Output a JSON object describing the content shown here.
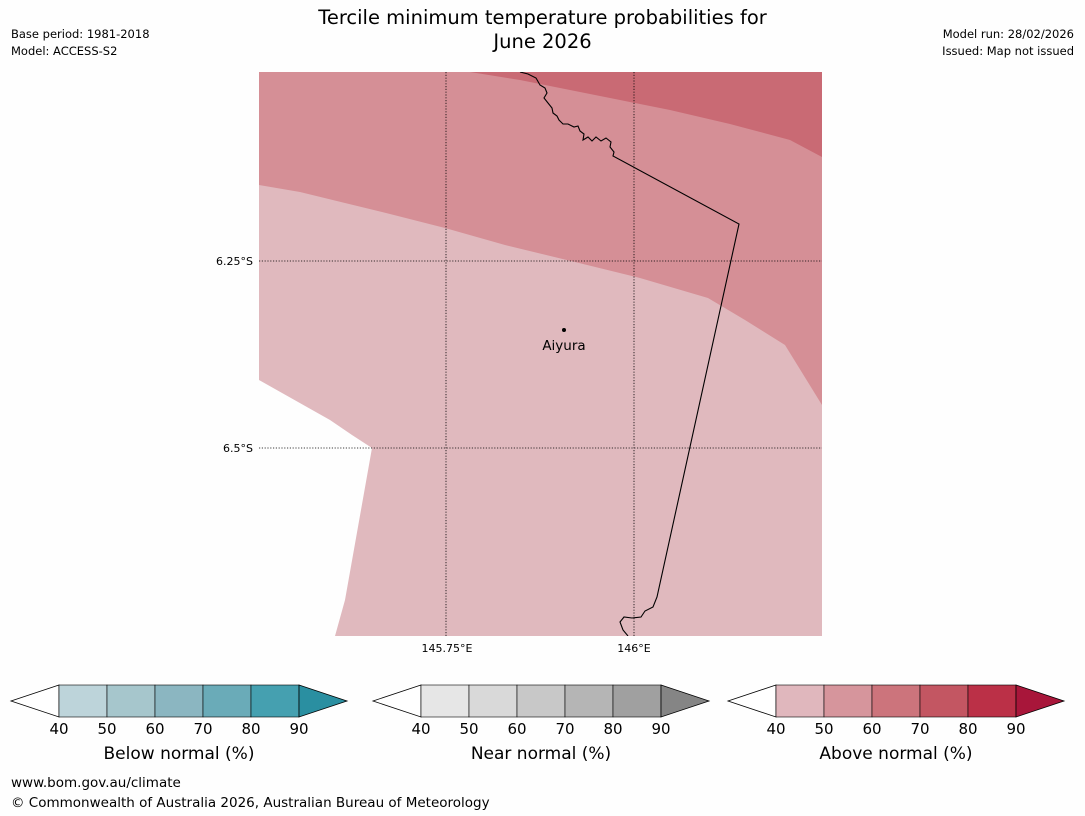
{
  "title_line1": "Tercile minimum temperature probabilities for",
  "title_line2": "June 2026",
  "meta_left": {
    "base_period": "Base period: 1981-2018",
    "model": "Model: ACCESS-S2"
  },
  "meta_right": {
    "model_run": "Model run: 28/02/2026",
    "issued": "Issued: Map not issued"
  },
  "map": {
    "lat_labels": [
      "6.25°S",
      "6.5°S"
    ],
    "lon_labels": [
      "145.75°E",
      "146°E"
    ],
    "place": "Aiyura",
    "fill_colors": {
      "lowest": "#e0b9be",
      "middle": "#d58f96",
      "upper": "#c96a74"
    }
  },
  "colorbars": [
    {
      "label": "Below normal (%)",
      "ticks": [
        "40",
        "50",
        "60",
        "70",
        "80",
        "90"
      ],
      "colors": [
        "#ffffff",
        "#bdd4da",
        "#a6c6cc",
        "#8bb6c1",
        "#6aabb8",
        "#45a0b0",
        "#2a8fa1"
      ]
    },
    {
      "label": "Near normal (%)",
      "ticks": [
        "40",
        "50",
        "60",
        "70",
        "80",
        "90"
      ],
      "colors": [
        "#ffffff",
        "#e6e6e6",
        "#d9d9d9",
        "#c8c8c8",
        "#b5b5b5",
        "#a0a0a0",
        "#858585"
      ]
    },
    {
      "label": "Above normal (%)",
      "ticks": [
        "40",
        "50",
        "60",
        "70",
        "80",
        "90"
      ],
      "colors": [
        "#ffffff",
        "#e0b7bd",
        "#d6959c",
        "#cc747c",
        "#c35662",
        "#bb3047",
        "#a8163a"
      ]
    }
  ],
  "footer": {
    "url": "www.bom.gov.au/climate",
    "copyright": "© Commonwealth of Australia 2026, Australian Bureau of Meteorology"
  }
}
